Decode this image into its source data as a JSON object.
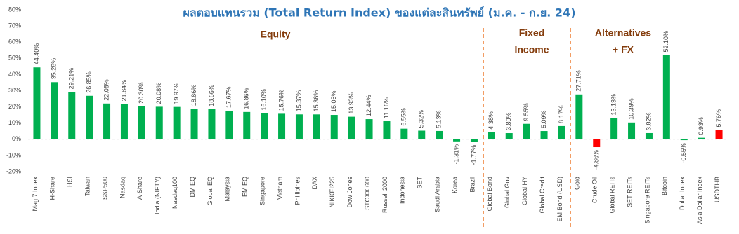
{
  "chart_data": {
    "type": "bar",
    "title": "ผลตอบแทนรวม (Total Return Index) ของแต่ละสินทรัพย์ (ม.ค. - ก.ย. 24)",
    "annotations": [
      {
        "lines": [
          "Equity"
        ]
      },
      {
        "lines": [
          "Fixed",
          "Income"
        ]
      },
      {
        "lines": [
          "Alternatives",
          "+ FX"
        ]
      }
    ],
    "categories": [
      "Mag 7 Index",
      "H-Share",
      "HSI",
      "Taiwan",
      "S&P500",
      "Nasdaq",
      "A-Share",
      "India (NIFTY)",
      "Nasdaq100",
      "DM EQ",
      "Global EQ",
      "Malaysia",
      "EM EQ",
      "Singapore",
      "Vietnam",
      "Phillipines",
      "DAX",
      "NIKKEI225",
      "Dow Jones",
      "STOXX 600",
      "Russell 2000",
      "Indonesia",
      "SET",
      "Saudi Arabia",
      "Korea",
      "Brazil",
      "Global Bond",
      "Global Gov",
      "Global  HY",
      "Global Credit",
      "EM Bond (USD)",
      "Gold",
      "Crude Oil",
      "Global REITs",
      "SET REITs",
      "Singapore REITs",
      "Bitcoin",
      "Dollar Index",
      "Asia Dollar Index",
      "USDTHB"
    ],
    "values": [
      44.4,
      35.28,
      29.21,
      26.85,
      22.08,
      21.84,
      20.3,
      20.08,
      19.97,
      18.86,
      18.66,
      17.67,
      16.86,
      16.1,
      15.76,
      15.37,
      15.36,
      15.05,
      13.93,
      12.44,
      11.16,
      6.55,
      5.32,
      5.13,
      -1.31,
      -1.77,
      4.38,
      3.8,
      9.55,
      5.09,
      8.17,
      27.71,
      -4.86,
      13.13,
      10.39,
      3.82,
      52.1,
      -0.55,
      0.93,
      5.76
    ],
    "value_labels": [
      "44.40%",
      "35.28%",
      "29.21%",
      "26.85%",
      "22.08%",
      "21.84%",
      "20.30%",
      "20.08%",
      "19.97%",
      "18.86%",
      "18.66%",
      "17.67%",
      "16.86%",
      "16.10%",
      "15.76%",
      "15.37%",
      "15.36%",
      "15.05%",
      "13.93%",
      "12.44%",
      "11.16%",
      "6.55%",
      "5.32%",
      "5.13%",
      "-1.31%",
      "-1.77%",
      "4.38%",
      "3.80%",
      "9.55%",
      "5.09%",
      "8.17%",
      "27.71%",
      "-4.86%",
      "13.13%",
      "10.39%",
      "3.82%",
      "52.10%",
      "-0.55%",
      "0.93%",
      "5.76%"
    ],
    "colors": [
      "#00b050",
      "#00b050",
      "#00b050",
      "#00b050",
      "#00b050",
      "#00b050",
      "#00b050",
      "#00b050",
      "#00b050",
      "#00b050",
      "#00b050",
      "#00b050",
      "#00b050",
      "#00b050",
      "#00b050",
      "#00b050",
      "#00b050",
      "#00b050",
      "#00b050",
      "#00b050",
      "#00b050",
      "#00b050",
      "#00b050",
      "#00b050",
      "#00b050",
      "#00b050",
      "#00b050",
      "#00b050",
      "#00b050",
      "#00b050",
      "#00b050",
      "#00b050",
      "#ff0000",
      "#00b050",
      "#00b050",
      "#00b050",
      "#00b050",
      "#00b050",
      "#00b050",
      "#ff0000"
    ],
    "ylim": [
      -20,
      80
    ],
    "yticks": [
      {
        "value": -20,
        "label": "-20%"
      },
      {
        "value": -10,
        "label": "-10%"
      },
      {
        "value": 0,
        "label": "0%"
      },
      {
        "value": 10,
        "label": "10%"
      },
      {
        "value": 20,
        "label": "20%"
      },
      {
        "value": 30,
        "label": "30%"
      },
      {
        "value": 40,
        "label": "40%"
      },
      {
        "value": 50,
        "label": "50%"
      },
      {
        "value": 60,
        "label": "60%"
      },
      {
        "value": 70,
        "label": "70%"
      },
      {
        "value": 80,
        "label": "80%"
      }
    ],
    "grid": false
  }
}
